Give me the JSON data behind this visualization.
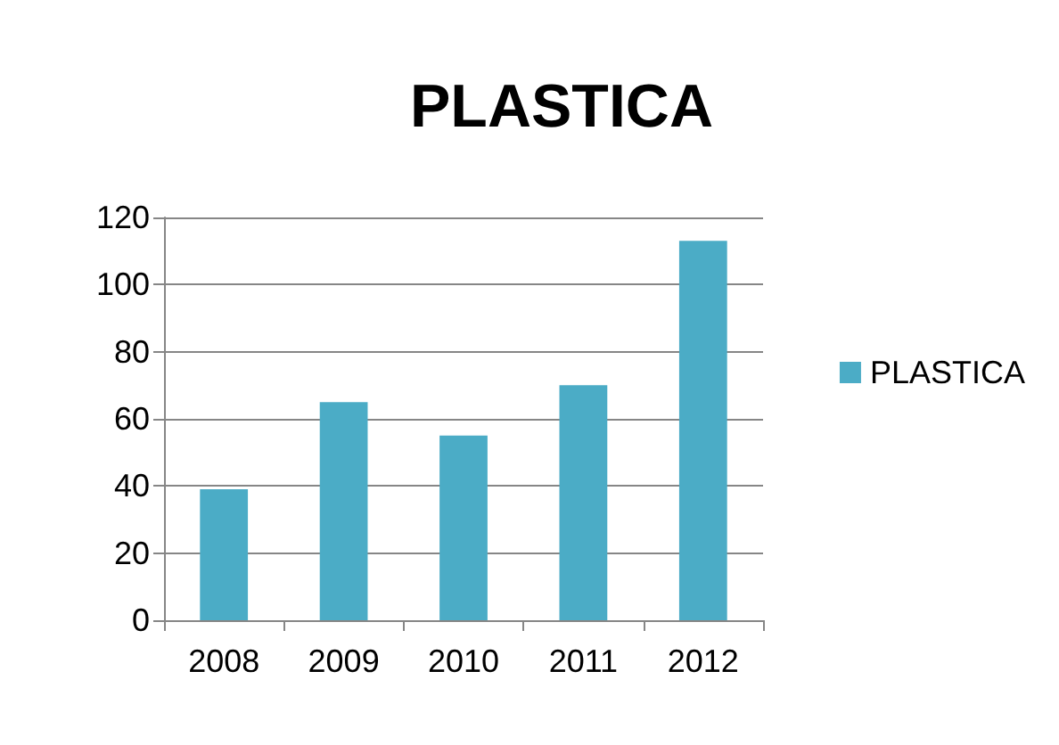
{
  "chart_data": {
    "type": "bar",
    "title": "PLASTICA",
    "categories": [
      "2008",
      "2009",
      "2010",
      "2011",
      "2012"
    ],
    "series": [
      {
        "name": "PLASTICA",
        "color": "#4bacc6",
        "values": [
          39,
          65,
          55,
          70,
          113
        ]
      }
    ],
    "ylim": [
      0,
      120
    ],
    "yticks": [
      0,
      20,
      40,
      60,
      80,
      100,
      120
    ],
    "grid": "y",
    "legend": "right"
  }
}
